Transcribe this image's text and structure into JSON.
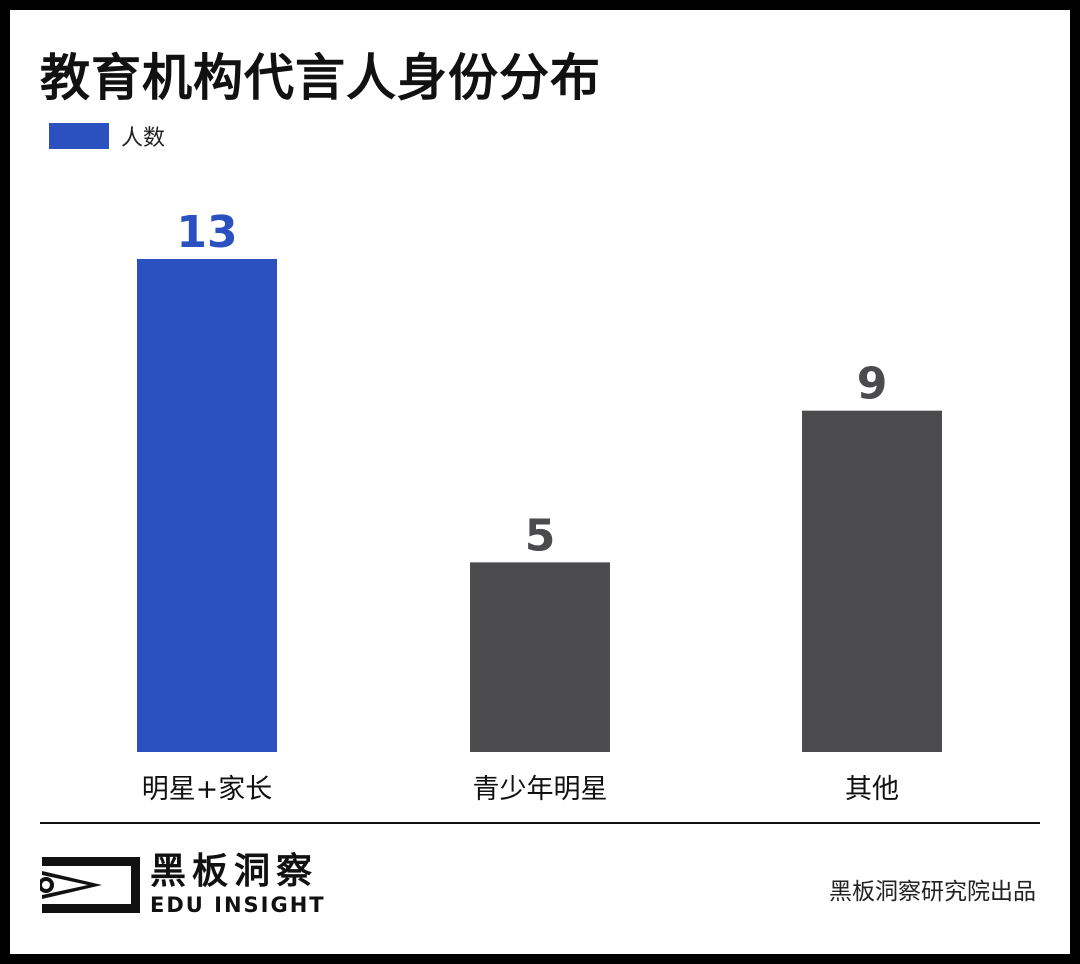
{
  "chart_data": {
    "type": "bar",
    "title": "教育机构代言人身份分布",
    "legend": {
      "label": "人数",
      "color": "#2B50BF",
      "placement": "top-left"
    },
    "categories": [
      "明星+家长",
      "青少年明星",
      "其他"
    ],
    "values": [
      13,
      5,
      9
    ],
    "bar_colors": [
      "#2B50BF",
      "#4B4B4D",
      "#4B4B4D"
    ],
    "label_colors": [
      "#2B50BF",
      "#4B4B4D",
      "#4B4B4D"
    ],
    "xlabel": "",
    "ylabel": "",
    "ylim": [
      0,
      13.5
    ],
    "grid": false
  },
  "footer": {
    "logo_cn": "黑板洞察",
    "logo_en": "EDU INSIGHT",
    "credit": "黑板洞察研究院出品"
  },
  "icons": {
    "logo": "eye-bracket-logo-icon"
  }
}
